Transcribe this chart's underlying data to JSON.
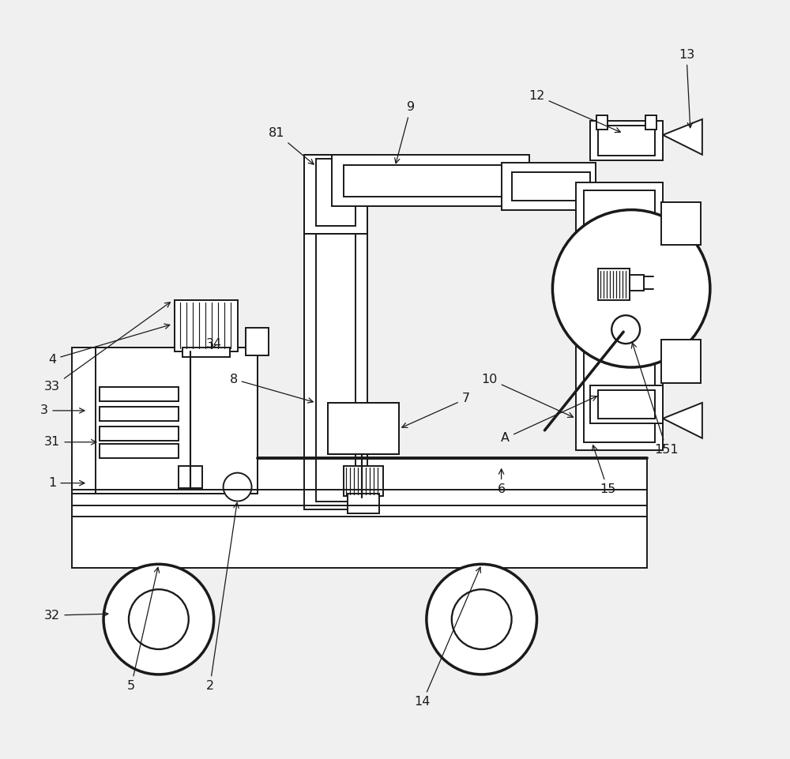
{
  "bg_color": "#f0f0f0",
  "line_color": "#1a1a1a",
  "lw": 1.4,
  "fig_w": 10.0,
  "fig_h": 9.61
}
